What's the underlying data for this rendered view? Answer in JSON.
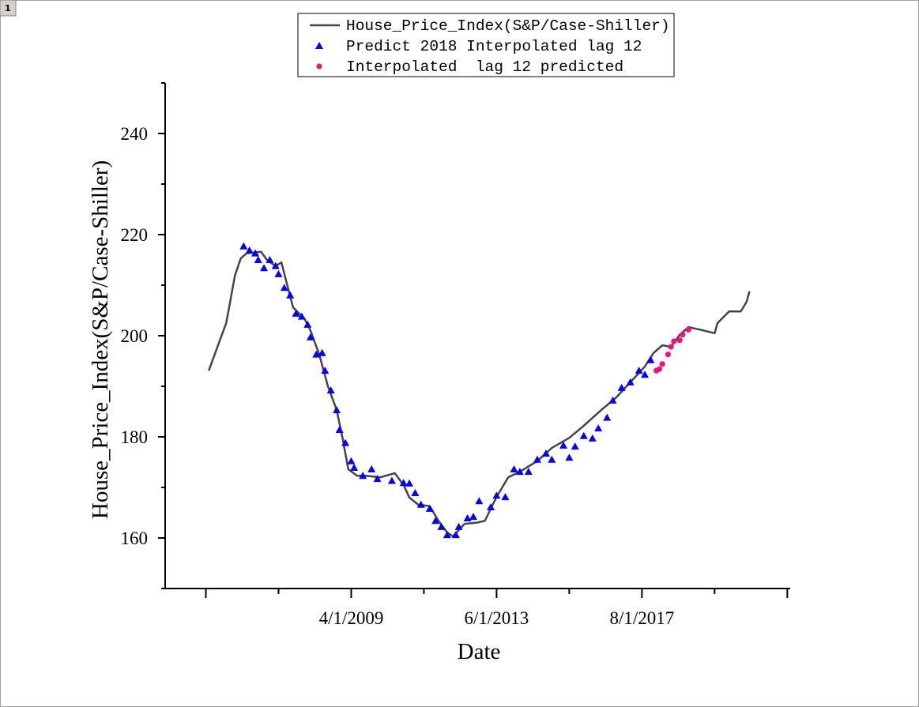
{
  "window": {
    "tab": "1"
  },
  "chart_data": {
    "type": "line",
    "xlabel": "Date",
    "ylabel": "House_Price_Index(S&P/Case-Shiller)",
    "xlim": [
      "12/1/2003",
      "11/1/2021"
    ],
    "xticks": [
      "4/1/2009",
      "6/1/2013",
      "8/1/2017"
    ],
    "ylim": [
      150,
      250
    ],
    "yticks": [
      160,
      180,
      200,
      220,
      240
    ],
    "legend": "top",
    "series": [
      {
        "name": "House_Price_Index(S&P/Case-Shiller)",
        "color": "#454545",
        "marker": "line",
        "x": [
          "3/1/2005",
          "6/1/2005",
          "9/1/2005",
          "10/1/2005",
          "12/1/2005",
          "2/1/2006",
          "4/1/2006",
          "9/1/2006",
          "11/1/2006",
          "2/1/2007",
          "4/1/2007",
          "6/1/2007",
          "8/1/2007",
          "12/1/2007",
          "2/1/2008",
          "5/1/2008",
          "8/1/2008",
          "11/1/2008",
          "1/1/2009",
          "3/1/2009",
          "6/1/2009",
          "9/1/2009",
          "2/1/2010",
          "7/1/2010",
          "10/1/2010",
          "12/1/2010",
          "3/1/2011",
          "7/1/2011",
          "10/1/2011",
          "1/1/2012",
          "3/1/2012",
          "7/1/2012",
          "11/1/2012",
          "2/1/2013",
          "4/1/2013",
          "6/1/2013",
          "10/1/2013",
          "2/1/2014",
          "8/1/2014",
          "1/1/2015",
          "7/1/2015",
          "12/1/2015",
          "6/1/2016",
          "11/1/2016",
          "4/1/2017",
          "9/1/2017",
          "12/1/2017",
          "3/1/2018",
          "6/1/2018",
          "9/1/2018",
          "12/1/2018",
          "4/1/2019",
          "9/1/2019",
          "10/1/2019",
          "2/1/2020",
          "6/1/2020",
          "8/1/2020",
          "9/1/2020"
        ],
        "values": [
          193.1,
          197.8,
          202.5,
          205.6,
          211.9,
          215.3,
          216.3,
          216.6,
          215,
          213.8,
          214.5,
          210,
          205.6,
          203.3,
          201,
          196.3,
          190,
          185.3,
          179.8,
          173.6,
          172.3,
          172.3,
          172,
          172.8,
          170.5,
          168,
          166.6,
          166.3,
          163.4,
          161.1,
          160.3,
          162.8,
          163,
          163.4,
          165.8,
          168.1,
          172,
          173.1,
          175.2,
          177.8,
          179.8,
          182.2,
          185.3,
          187.7,
          190.8,
          193.9,
          196.6,
          198.1,
          197.8,
          200.2,
          201.7,
          201.2,
          200.5,
          202.5,
          204.8,
          204.8,
          206.7,
          208.8
        ]
      },
      {
        "name": "Predict 2018 Interpolated lag 12",
        "color": "#0000ff",
        "marker": "triangle",
        "x": [
          "3/1/2006",
          "5/1/2006",
          "7/1/2006",
          "8/1/2006",
          "10/1/2006",
          "12/1/2006",
          "2/1/2007",
          "3/1/2007",
          "5/1/2007",
          "7/1/2007",
          "9/1/2007",
          "11/1/2007",
          "1/1/2008",
          "2/1/2008",
          "4/1/2008",
          "6/1/2008",
          "7/1/2008",
          "9/1/2008",
          "11/1/2008",
          "12/1/2008",
          "2/1/2009",
          "4/1/2009",
          "5/1/2009",
          "8/1/2009",
          "11/1/2009",
          "1/1/2010",
          "6/1/2010",
          "10/1/2010",
          "12/1/2010",
          "2/1/2011",
          "4/1/2011",
          "7/1/2011",
          "9/1/2011",
          "11/1/2011",
          "1/1/2012",
          "4/1/2012",
          "5/1/2012",
          "8/1/2012",
          "10/1/2012",
          "12/1/2012",
          "4/1/2013",
          "6/1/2013",
          "9/1/2013",
          "12/1/2013",
          "2/1/2014",
          "5/1/2014",
          "8/1/2014",
          "11/1/2014",
          "1/1/2015",
          "5/1/2015",
          "7/1/2015",
          "9/1/2015",
          "12/1/2015",
          "3/1/2016",
          "5/1/2016",
          "8/1/2016",
          "10/1/2016",
          "1/1/2017",
          "4/1/2017",
          "7/1/2017",
          "9/1/2017",
          "11/1/2017"
        ],
        "values": [
          217.7,
          216.9,
          216.3,
          215,
          213.4,
          215,
          213.8,
          212.2,
          209.5,
          208,
          204.4,
          203.8,
          202.2,
          199.7,
          196.3,
          196.6,
          193.1,
          189.2,
          185.3,
          181.4,
          178.8,
          175.2,
          173.9,
          172.3,
          173.6,
          171.7,
          171.3,
          170.9,
          170.8,
          168.9,
          166.6,
          165.8,
          163.4,
          162.2,
          160.6,
          160.6,
          162.2,
          163.9,
          164.2,
          167.3,
          166.1,
          168.4,
          168.1,
          173.6,
          173.1,
          173.1,
          175.5,
          176.7,
          175.5,
          178.3,
          175.9,
          178.1,
          180.2,
          179.7,
          181.7,
          183.8,
          187.2,
          189.7,
          190.8,
          193.1,
          192.3,
          195.2
        ]
      },
      {
        "name": "Interpolated  lag 12 predicted",
        "color": "#f0147a",
        "marker": "circle",
        "x": [
          "1/1/2018",
          "2/1/2018",
          "3/1/2018",
          "5/1/2018",
          "6/1/2018",
          "7/1/2018",
          "9/1/2018",
          "10/1/2018",
          "12/1/2018"
        ],
        "values": [
          193.1,
          193.4,
          194.4,
          196.3,
          197.8,
          198.9,
          199.1,
          200.2,
          201.2
        ]
      }
    ]
  }
}
